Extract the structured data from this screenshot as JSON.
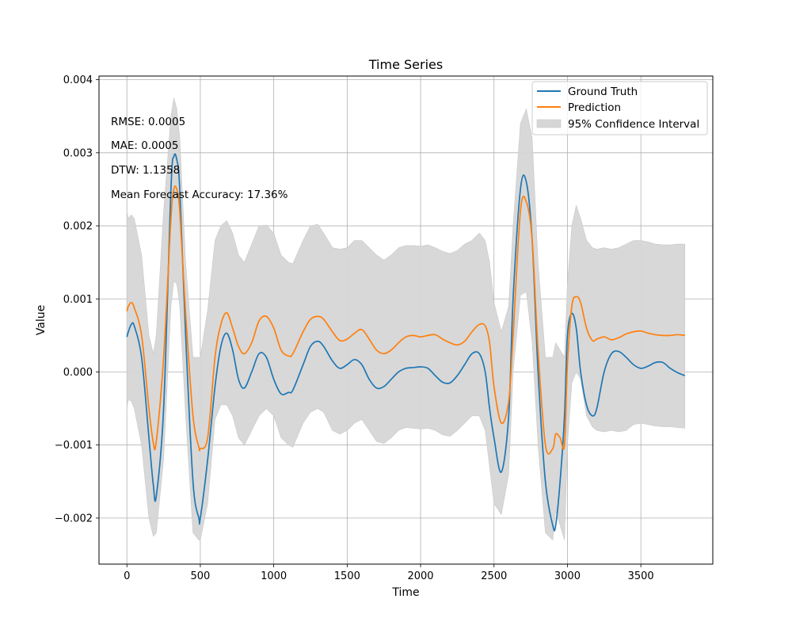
{
  "chart_data": {
    "type": "line",
    "title": "Time Series",
    "xlabel": "Time",
    "ylabel": "Value",
    "xlim": [
      -190,
      3990
    ],
    "ylim": [
      -0.00263,
      0.00405
    ],
    "xticks": [
      0,
      500,
      1000,
      1500,
      2000,
      2500,
      3000,
      3500
    ],
    "xtick_labels": [
      "0",
      "500",
      "1000",
      "1500",
      "2000",
      "2500",
      "3000",
      "3500"
    ],
    "yticks": [
      -0.002,
      -0.001,
      0.0,
      0.001,
      0.002,
      0.003,
      0.004
    ],
    "ytick_labels": [
      "−0.002",
      "−0.001",
      "0.000",
      "0.001",
      "0.002",
      "0.003",
      "0.004"
    ],
    "grid": true,
    "legend_position": "top-right",
    "annotations": [
      "RMSE: 0.0005",
      "MAE: 0.0005",
      "DTW: 1.1358",
      "Mean Forecast Accuracy: 17.36%"
    ],
    "x": [
      0,
      10,
      30,
      50,
      100,
      150,
      180,
      200,
      250,
      300,
      320,
      340,
      360,
      400,
      450,
      490,
      500,
      550,
      600,
      640,
      680,
      720,
      760,
      800,
      850,
      900,
      950,
      1000,
      1050,
      1100,
      1130,
      1200,
      1250,
      1300,
      1340,
      1400,
      1450,
      1500,
      1550,
      1600,
      1650,
      1700,
      1750,
      1800,
      1850,
      1900,
      1950,
      2000,
      2050,
      2100,
      2150,
      2200,
      2250,
      2300,
      2350,
      2400,
      2440,
      2470,
      2500,
      2550,
      2600,
      2630,
      2680,
      2720,
      2760,
      2800,
      2850,
      2900,
      2920,
      2950,
      2980,
      3000,
      3030,
      3060,
      3090,
      3130,
      3170,
      3200,
      3250,
      3300,
      3350,
      3400,
      3450,
      3500,
      3550,
      3600,
      3650,
      3700,
      3750,
      3800
    ],
    "series": [
      {
        "name": "Ground Truth",
        "color": "#1f77b4",
        "values": [
          0.00048,
          0.00055,
          0.00065,
          0.00063,
          0.0002,
          -0.0009,
          -0.00155,
          -0.0017,
          -0.0005,
          0.0025,
          0.00295,
          0.0029,
          0.0025,
          0.0005,
          -0.0015,
          -0.002,
          -0.002,
          -0.0012,
          -0.0002,
          0.00035,
          0.00053,
          0.0003,
          -0.0001,
          -0.00022,
          0.0,
          0.00025,
          0.0002,
          -0.0001,
          -0.0003,
          -0.00028,
          -0.00025,
          0.0001,
          0.00035,
          0.00042,
          0.00035,
          0.00015,
          5e-05,
          0.0001,
          0.00017,
          0.0001,
          -0.0001,
          -0.00022,
          -0.0002,
          -0.0001,
          0.0,
          5e-05,
          6e-05,
          7e-05,
          5e-05,
          -5e-05,
          -0.00014,
          -0.00015,
          -5e-05,
          0.0001,
          0.00025,
          0.00025,
          0.0,
          -0.0005,
          -0.0009,
          -0.00137,
          -0.0006,
          0.001,
          0.0025,
          0.0026,
          0.0018,
          0.0,
          -0.0015,
          -0.0021,
          -0.0021,
          -0.0015,
          -0.0006,
          0.0005,
          0.0008,
          0.0006,
          0.0,
          -0.00045,
          -0.0006,
          -0.0005,
          0.0,
          0.00025,
          0.00028,
          0.0002,
          0.0001,
          5e-05,
          8e-05,
          0.00013,
          0.00013,
          5e-05,
          -1e-05,
          -5e-05
        ]
      },
      {
        "name": "Prediction",
        "color": "#ff7f0e",
        "values": [
          0.00083,
          0.0009,
          0.00095,
          0.00088,
          0.0005,
          -0.0005,
          -0.00097,
          -0.00095,
          0.0002,
          0.0021,
          0.0025,
          0.0025,
          0.0022,
          0.0008,
          -0.0006,
          -0.00103,
          -0.00105,
          -0.0009,
          0.0002,
          0.00065,
          0.00081,
          0.0006,
          0.00035,
          0.00025,
          0.0004,
          0.0007,
          0.00076,
          0.0006,
          0.0003,
          0.00022,
          0.00025,
          0.00055,
          0.00072,
          0.00076,
          0.00072,
          0.00055,
          0.00043,
          0.00045,
          0.00053,
          0.00058,
          0.00045,
          0.0003,
          0.00025,
          0.0003,
          0.0004,
          0.00048,
          0.0005,
          0.00048,
          0.0005,
          0.00051,
          0.00045,
          0.0004,
          0.00037,
          0.00042,
          0.00055,
          0.00065,
          0.00063,
          0.0004,
          -0.0002,
          -0.0007,
          -0.0004,
          0.0005,
          0.0022,
          0.00233,
          0.0018,
          0.0003,
          -0.001,
          -0.00105,
          -0.00085,
          -0.0009,
          -0.001,
          0.0001,
          0.0009,
          0.00103,
          0.00095,
          0.0006,
          0.00043,
          0.00045,
          0.00048,
          0.00044,
          0.00047,
          0.00052,
          0.00055,
          0.00056,
          0.00053,
          0.00051,
          0.0005,
          0.0005,
          0.00051,
          0.0005
        ]
      }
    ],
    "confidence_interval": {
      "name": "95% Confidence Interval",
      "color": "#d6d6d6",
      "upper": [
        0.0022,
        0.0021,
        0.00215,
        0.0021,
        0.0016,
        0.0005,
        0.00025,
        0.0005,
        0.0022,
        0.0035,
        0.00375,
        0.0036,
        0.0032,
        0.0015,
        0.0002,
        0.0002,
        0.0002,
        0.00085,
        0.0018,
        0.002,
        0.00207,
        0.0019,
        0.0016,
        0.0015,
        0.00175,
        0.002,
        0.00201,
        0.0019,
        0.0016,
        0.0015,
        0.00148,
        0.0018,
        0.002,
        0.00202,
        0.0019,
        0.0017,
        0.00168,
        0.0017,
        0.0018,
        0.0018,
        0.0017,
        0.0016,
        0.00153,
        0.0016,
        0.0017,
        0.00173,
        0.00173,
        0.00172,
        0.00174,
        0.0017,
        0.00165,
        0.00162,
        0.00166,
        0.00175,
        0.0018,
        0.0019,
        0.0018,
        0.0015,
        0.00095,
        0.00055,
        0.0009,
        0.002,
        0.0034,
        0.0036,
        0.0032,
        0.0015,
        0.0002,
        0.0002,
        0.0004,
        0.0003,
        0.0002,
        0.0012,
        0.002,
        0.00228,
        0.0021,
        0.0018,
        0.0017,
        0.00168,
        0.0017,
        0.00168,
        0.0017,
        0.00175,
        0.0018,
        0.0018,
        0.00178,
        0.00175,
        0.00174,
        0.00174,
        0.00175,
        0.00175
      ],
      "lower": [
        -0.0005,
        -0.00038,
        -0.0004,
        -0.0005,
        -0.001,
        -0.002,
        -0.00225,
        -0.0022,
        -0.0012,
        0.0009,
        0.00125,
        0.0012,
        0.0009,
        -0.0006,
        -0.0022,
        -0.0023,
        -0.0023,
        -0.0018,
        -0.00065,
        -0.00045,
        -0.00045,
        -0.0006,
        -0.0009,
        -0.001,
        -0.0008,
        -0.0006,
        -0.0005,
        -0.0006,
        -0.0009,
        -0.001,
        -0.00103,
        -0.0007,
        -0.00055,
        -0.0005,
        -0.00055,
        -0.0008,
        -0.00085,
        -0.0008,
        -0.0007,
        -0.00065,
        -0.0008,
        -0.00095,
        -0.00098,
        -0.0009,
        -0.0008,
        -0.00076,
        -0.00077,
        -0.00078,
        -0.00077,
        -0.0008,
        -0.00086,
        -0.00088,
        -0.0008,
        -0.0007,
        -0.0006,
        -0.0006,
        -0.0008,
        -0.0013,
        -0.0018,
        -0.00195,
        -0.0014,
        0.0,
        0.00105,
        0.0011,
        0.0004,
        -0.001,
        -0.0022,
        -0.0023,
        -0.0019,
        -0.0021,
        -0.0023,
        -0.001,
        -0.00015,
        0.0,
        -0.0001,
        -0.0006,
        -0.00075,
        -0.0008,
        -0.00082,
        -0.0008,
        -0.00082,
        -0.0008,
        -0.00072,
        -0.0007,
        -0.00072,
        -0.00074,
        -0.00075,
        -0.00075,
        -0.00076,
        -0.00077
      ]
    }
  }
}
